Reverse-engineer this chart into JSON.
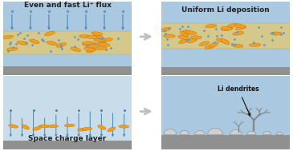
{
  "fig_width": 3.65,
  "fig_height": 1.89,
  "dpi": 100,
  "bg_color": "#ffffff",
  "arrow_color": "#c0c0c0",
  "panel_tl": {
    "title": "Even and fast Li⁺ flux",
    "title_fontsize": 6.5,
    "sky_color": "#aac8e0",
    "membrane_color": "#d4c88a",
    "membrane_border": "#b0a870",
    "substrate_color": "#909090",
    "arrow_color_flux": "#4488bb",
    "li_color": "#f0a020"
  },
  "panel_tr": {
    "title": "Uniform Li deposition",
    "title_fontsize": 6.5,
    "sky_color": "#aac8e0",
    "membrane_color": "#d4c88a",
    "membrane_border": "#b0a870",
    "substrate_color": "#909090",
    "li_color": "#f0a020"
  },
  "panel_bl": {
    "title": "Space charge layer",
    "title_fontsize": 6.5,
    "sky_color": "#c8dcea",
    "substrate_color": "#909090",
    "arrow_color_blue": "#4488bb",
    "arrow_color_orange": "#f0a020"
  },
  "panel_br": {
    "title": "Li dendrites",
    "title_fontsize": 5.5,
    "sky_color": "#aac8e0",
    "substrate_color": "#909090",
    "dendrite_color": "#d0d0d0",
    "dendrite_border": "#888888"
  }
}
